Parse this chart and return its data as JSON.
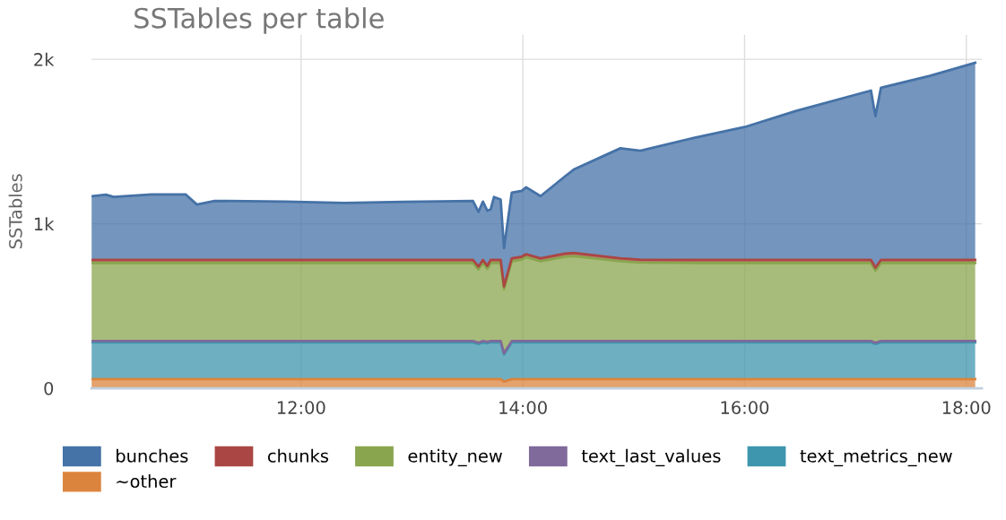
{
  "chart_data": {
    "type": "area",
    "stacked": true,
    "title": "SSTables per table",
    "ylabel": "SSTables",
    "x": [
      10.11,
      10.24,
      10.31,
      10.65,
      10.96,
      11.06,
      11.22,
      11.86,
      12.39,
      12.92,
      13.55,
      13.6,
      13.64,
      13.68,
      13.71,
      13.74,
      13.8,
      13.83,
      13.9,
      13.99,
      14.03,
      14.16,
      14.38,
      14.46,
      14.88,
      15.06,
      15.54,
      16.0,
      16.46,
      17.14,
      17.18,
      17.23,
      17.67,
      18.08
    ],
    "series": [
      {
        "name": "~other",
        "color": "#db843d",
        "values": [
          55,
          55,
          55,
          55,
          55,
          55,
          55,
          55,
          55,
          55,
          55,
          55,
          55,
          55,
          55,
          55,
          55,
          40,
          55,
          55,
          55,
          55,
          55,
          55,
          55,
          55,
          55,
          55,
          55,
          55,
          55,
          55,
          55,
          55
        ]
      },
      {
        "name": "text_metrics_new",
        "color": "#3d96ae",
        "values": [
          224,
          224,
          224,
          224,
          224,
          224,
          224,
          224,
          224,
          224,
          224,
          214,
          224,
          219,
          224,
          224,
          224,
          165,
          224,
          224,
          224,
          224,
          224,
          224,
          224,
          224,
          224,
          224,
          224,
          224,
          214,
          224,
          224,
          224
        ]
      },
      {
        "name": "text_last_values",
        "color": "#80699b",
        "values": [
          8,
          8,
          8,
          8,
          8,
          8,
          8,
          8,
          8,
          8,
          8,
          8,
          8,
          8,
          8,
          8,
          8,
          8,
          8,
          8,
          8,
          8,
          8,
          8,
          8,
          8,
          8,
          8,
          8,
          8,
          8,
          8,
          8,
          8
        ]
      },
      {
        "name": "entity_new",
        "color": "#89a54e",
        "values": [
          475,
          475,
          475,
          475,
          475,
          475,
          475,
          475,
          475,
          475,
          475,
          445,
          475,
          444,
          475,
          475,
          475,
          389,
          485,
          495,
          510,
          485,
          513,
          517,
          485,
          477,
          475,
          475,
          475,
          475,
          438,
          475,
          475,
          475
        ]
      },
      {
        "name": "chunks",
        "color": "#aa4643",
        "values": [
          18,
          18,
          18,
          18,
          18,
          18,
          18,
          18,
          18,
          18,
          18,
          18,
          18,
          18,
          18,
          18,
          18,
          18,
          18,
          18,
          18,
          18,
          18,
          18,
          18,
          18,
          18,
          18,
          18,
          18,
          18,
          18,
          18,
          18
        ]
      },
      {
        "name": "bunches",
        "color": "#4572a7",
        "values": [
          388,
          397,
          383,
          398,
          398,
          337,
          359,
          355,
          346,
          353,
          359,
          332,
          355,
          335,
          308,
          383,
          368,
          232,
          399,
          400,
          407,
          378,
          470,
          508,
          669,
          662,
          742,
          808,
          905,
          1030,
          921,
          1047,
          1119,
          1199
        ]
      }
    ],
    "xlim": [
      10.11,
      18.14
    ],
    "xticks": [
      {
        "value": 12,
        "label": "12:00"
      },
      {
        "value": 14,
        "label": "14:00"
      },
      {
        "value": 16,
        "label": "16:00"
      },
      {
        "value": 18,
        "label": "18:00"
      }
    ],
    "ylim": [
      0,
      2150
    ],
    "yticks": [
      {
        "value": 0,
        "label": "0"
      },
      {
        "value": 1000,
        "label": "1k"
      },
      {
        "value": 2000,
        "label": "2k"
      }
    ],
    "grid": true,
    "legend": "bottom"
  }
}
